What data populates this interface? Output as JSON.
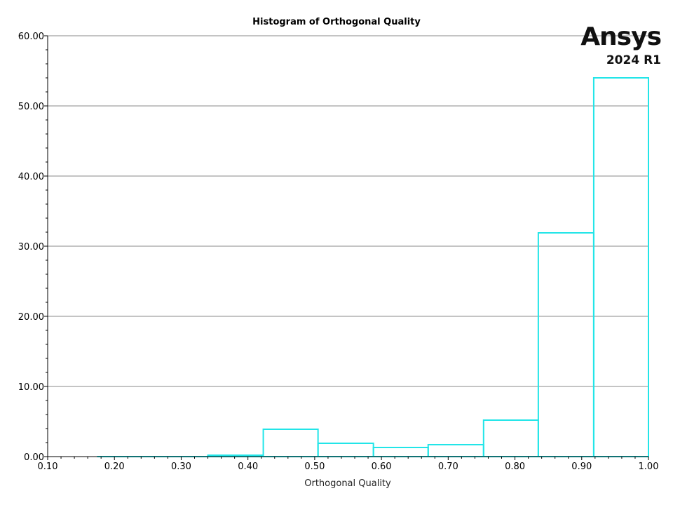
{
  "logo": {
    "brand": "Ansys",
    "version": "2024 R1"
  },
  "chart_data": {
    "type": "bar",
    "title": "Histogram of Orthogonal Quality",
    "xlabel": "Orthogonal Quality",
    "ylabel": "",
    "xlim": [
      0.1,
      1.0
    ],
    "ylim": [
      0,
      60
    ],
    "x_ticks": [
      "0.10",
      "0.20",
      "0.30",
      "0.40",
      "0.50",
      "0.60",
      "0.70",
      "0.80",
      "0.90",
      "1.00"
    ],
    "y_ticks": [
      "0.00",
      "10.00",
      "20.00",
      "30.00",
      "40.00",
      "50.00",
      "60.00"
    ],
    "grid": "horizontal",
    "bins": [
      {
        "x0": 0.175,
        "x1": 0.258,
        "value": 0.0
      },
      {
        "x0": 0.258,
        "x1": 0.34,
        "value": 0.0
      },
      {
        "x0": 0.34,
        "x1": 0.423,
        "value": 0.2
      },
      {
        "x0": 0.423,
        "x1": 0.505,
        "value": 3.9
      },
      {
        "x0": 0.505,
        "x1": 0.588,
        "value": 1.9
      },
      {
        "x0": 0.588,
        "x1": 0.67,
        "value": 1.3
      },
      {
        "x0": 0.67,
        "x1": 0.753,
        "value": 1.7
      },
      {
        "x0": 0.753,
        "x1": 0.835,
        "value": 5.2
      },
      {
        "x0": 0.835,
        "x1": 0.918,
        "value": 31.9
      },
      {
        "x0": 0.918,
        "x1": 1.0,
        "value": 54.0
      }
    ],
    "bar_color": "#22e5e8"
  }
}
